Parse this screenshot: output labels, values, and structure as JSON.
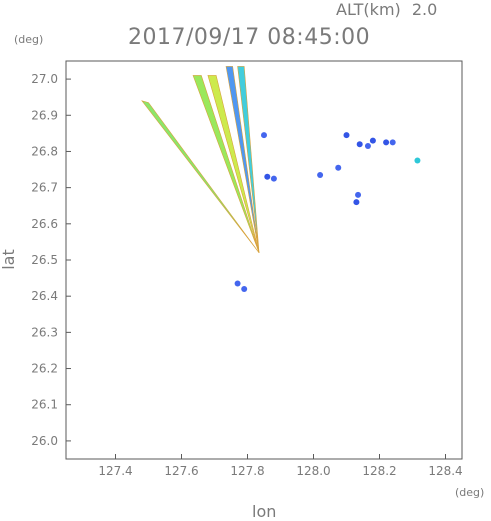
{
  "header": {
    "altitude_label": "ALT(km)",
    "altitude_value": "2.0",
    "timestamp": "2017/09/17 08:45:00",
    "deg_unit_top": "(deg)",
    "deg_unit_bottom": "(deg)"
  },
  "chart_data": {
    "type": "scatter",
    "title": "2017/09/17 08:45:00",
    "xlabel": "lon",
    "ylabel": "lat",
    "xlim": [
      127.25,
      128.45
    ],
    "ylim": [
      25.95,
      27.05
    ],
    "x_ticks": [
      "127.4",
      "127.6",
      "127.8",
      "128.0",
      "128.2",
      "128.4"
    ],
    "y_ticks": [
      "26.0",
      "26.1",
      "26.2",
      "26.3",
      "26.4",
      "26.5",
      "26.6",
      "26.7",
      "26.8",
      "26.9",
      "27.0"
    ],
    "grid": false,
    "colors": {
      "frame": "#5a5a5a",
      "text": "#7a7a7a"
    },
    "beams": [
      {
        "lon": [
          127.835,
          127.48,
          127.5
        ],
        "lat": [
          26.52,
          26.94,
          26.935
        ],
        "color": "#7ee35a"
      },
      {
        "lon": [
          127.835,
          127.635,
          127.66
        ],
        "lat": [
          26.52,
          27.01,
          27.01
        ],
        "color": "#8fe64a"
      },
      {
        "lon": [
          127.835,
          127.68,
          127.705
        ],
        "lat": [
          26.52,
          27.01,
          27.01
        ],
        "color": "#c8e83a"
      },
      {
        "lon": [
          127.835,
          127.735,
          127.755
        ],
        "lat": [
          26.52,
          27.035,
          27.035
        ],
        "color": "#3c8cf0"
      },
      {
        "lon": [
          127.835,
          127.77,
          127.79
        ],
        "lat": [
          26.52,
          27.035,
          27.035
        ],
        "color": "#2ec8d8"
      }
    ],
    "echoes": [
      {
        "lon": 128.1,
        "lat": 26.845,
        "color": "#3355e6"
      },
      {
        "lon": 128.14,
        "lat": 26.82,
        "color": "#3355e6"
      },
      {
        "lon": 128.165,
        "lat": 26.815,
        "color": "#4466ee"
      },
      {
        "lon": 128.18,
        "lat": 26.83,
        "color": "#3355e6"
      },
      {
        "lon": 128.22,
        "lat": 26.825,
        "color": "#3355e6"
      },
      {
        "lon": 128.24,
        "lat": 26.825,
        "color": "#4466ee"
      },
      {
        "lon": 127.85,
        "lat": 26.845,
        "color": "#4466ee"
      },
      {
        "lon": 127.86,
        "lat": 26.73,
        "color": "#3355e6"
      },
      {
        "lon": 127.88,
        "lat": 26.725,
        "color": "#4466ee"
      },
      {
        "lon": 128.02,
        "lat": 26.735,
        "color": "#4466ee"
      },
      {
        "lon": 128.075,
        "lat": 26.755,
        "color": "#4466ee"
      },
      {
        "lon": 128.135,
        "lat": 26.68,
        "color": "#4466ee"
      },
      {
        "lon": 128.13,
        "lat": 26.66,
        "color": "#3355e6"
      },
      {
        "lon": 128.315,
        "lat": 26.775,
        "color": "#2ec8d8"
      },
      {
        "lon": 127.77,
        "lat": 26.435,
        "color": "#4466ee"
      },
      {
        "lon": 127.79,
        "lat": 26.42,
        "color": "#4466ee"
      }
    ]
  }
}
